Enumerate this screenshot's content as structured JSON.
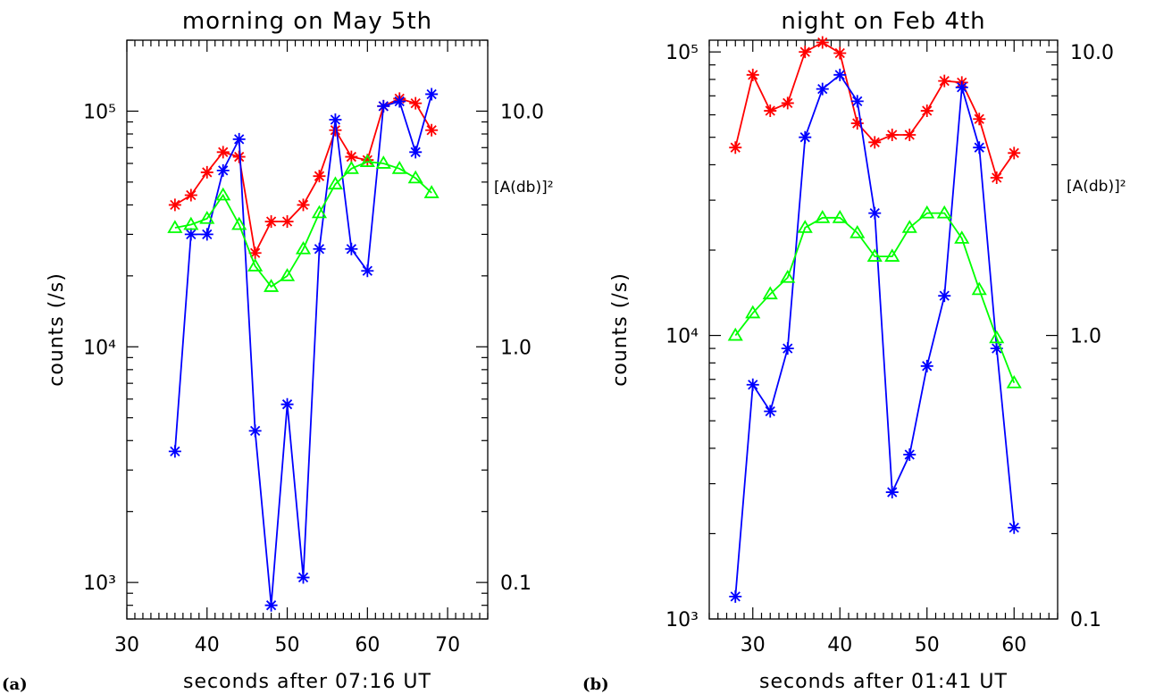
{
  "chart_data": [
    {
      "type": "line",
      "panel_label": "(a)",
      "title": "morning on May 5th",
      "xlabel": "seconds after 07:16 UT",
      "ylabel": "counts (/s)",
      "ylabel_right": "[A(db)]²",
      "xlim": [
        30,
        75
      ],
      "ylim": [
        700,
        200000
      ],
      "yscale": "log",
      "right_axis": {
        "ylim": [
          0.07,
          20
        ],
        "ticks": [
          0.1,
          1.0,
          10.0
        ],
        "tick_labels": [
          "0.1",
          "1.0",
          "10.0"
        ]
      },
      "x_ticks": [
        30,
        40,
        50,
        60,
        70
      ],
      "x_tick_labels": [
        "30",
        "40",
        "50",
        "60",
        "70"
      ],
      "y_ticks": [
        1000,
        10000,
        100000
      ],
      "y_tick_labels": [
        "10³",
        "10⁴",
        "10⁵"
      ],
      "grid": false,
      "series": [
        {
          "color": "#ff0000",
          "marker": "asterisk",
          "axis": "left",
          "x": [
            36,
            38,
            40,
            42,
            44,
            46,
            48,
            50,
            52,
            54,
            56,
            58,
            60,
            62,
            64,
            66,
            68
          ],
          "y": [
            40000,
            44000,
            55000,
            67000,
            64000,
            25000,
            34000,
            34000,
            40000,
            53000,
            83000,
            64000,
            62000,
            105000,
            113000,
            108000,
            83000
          ]
        },
        {
          "color": "#0000ff",
          "marker": "asterisk",
          "axis": "left",
          "x": [
            36,
            38,
            40,
            42,
            44,
            46,
            48,
            50,
            52,
            54,
            56,
            58,
            60,
            62,
            64,
            66,
            68
          ],
          "y": [
            3600,
            30000,
            30000,
            56000,
            76000,
            4400,
            800,
            5700,
            1050,
            26000,
            92000,
            26000,
            21000,
            105000,
            110000,
            67000,
            118000
          ]
        },
        {
          "color": "#00ff00",
          "marker": "triangle",
          "axis": "right",
          "x": [
            36,
            38,
            40,
            42,
            44,
            46,
            48,
            50,
            52,
            54,
            56,
            58,
            60,
            62,
            64,
            66,
            68
          ],
          "y": [
            3.2,
            3.3,
            3.5,
            4.4,
            3.3,
            2.2,
            1.8,
            2.0,
            2.6,
            3.7,
            4.9,
            5.7,
            6.1,
            6.0,
            5.7,
            5.2,
            4.5
          ]
        }
      ]
    },
    {
      "type": "line",
      "panel_label": "(b)",
      "title": "night on Feb 4th",
      "xlabel": "seconds after 01:41 UT",
      "ylabel": "counts (/s)",
      "ylabel_right": "[A(db)]²",
      "xlim": [
        25,
        65
      ],
      "ylim": [
        1000,
        110000
      ],
      "yscale": "log",
      "right_axis": {
        "ylim": [
          0.1,
          11
        ],
        "ticks": [
          0.1,
          1.0,
          10.0
        ],
        "tick_labels": [
          "0.1",
          "1.0",
          "10.0"
        ]
      },
      "x_ticks": [
        30,
        40,
        50,
        60
      ],
      "x_tick_labels": [
        "30",
        "40",
        "50",
        "60"
      ],
      "y_ticks": [
        1000,
        10000,
        100000
      ],
      "y_tick_labels": [
        "10³",
        "10⁴",
        "10⁵"
      ],
      "grid": false,
      "series": [
        {
          "color": "#ff0000",
          "marker": "asterisk",
          "axis": "left",
          "x": [
            28,
            30,
            32,
            34,
            36,
            38,
            40,
            42,
            44,
            46,
            48,
            50,
            52,
            54,
            56,
            58,
            60
          ],
          "y": [
            46000,
            83000,
            62000,
            66000,
            100000,
            108000,
            99000,
            56000,
            48000,
            51000,
            51000,
            62000,
            79000,
            78000,
            58000,
            36000,
            44000
          ]
        },
        {
          "color": "#0000ff",
          "marker": "asterisk",
          "axis": "left",
          "x": [
            28,
            30,
            32,
            34,
            36,
            38,
            40,
            42,
            44,
            46,
            48,
            50,
            52,
            54,
            56,
            58,
            60
          ],
          "y": [
            1200,
            6700,
            5400,
            9000,
            50000,
            74000,
            83000,
            67000,
            27000,
            2800,
            3800,
            7800,
            13800,
            75000,
            46000,
            9000,
            2100
          ]
        },
        {
          "color": "#00ff00",
          "marker": "triangle",
          "axis": "right",
          "x": [
            28,
            30,
            32,
            34,
            36,
            38,
            40,
            42,
            44,
            46,
            48,
            50,
            52,
            54,
            56,
            58,
            60
          ],
          "y": [
            1.0,
            1.2,
            1.4,
            1.6,
            2.4,
            2.6,
            2.6,
            2.3,
            1.9,
            1.9,
            2.4,
            2.7,
            2.7,
            2.2,
            1.45,
            0.98,
            0.68
          ]
        }
      ]
    }
  ]
}
